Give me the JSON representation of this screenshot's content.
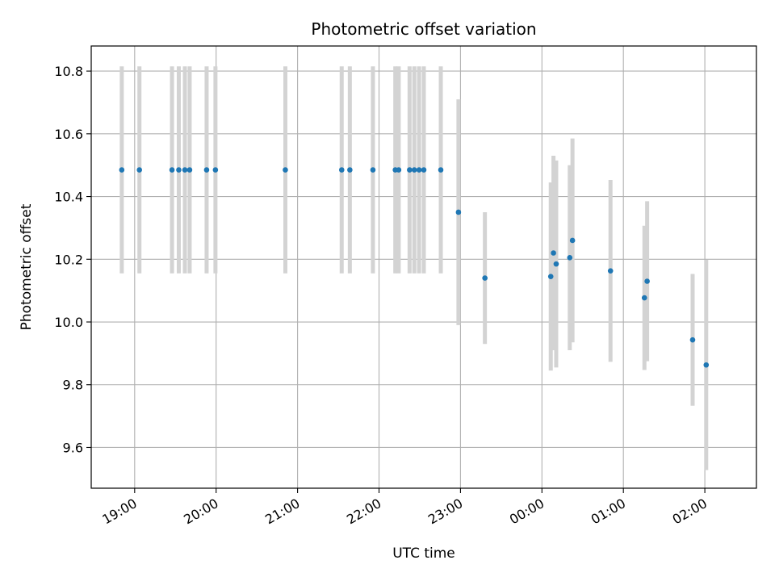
{
  "chart_data": {
    "type": "scatter",
    "title": "Photometric offset variation",
    "xlabel": "UTC time",
    "ylabel": "Photometric offset",
    "grid": true,
    "x_unit": "minutes since 18:00 UTC",
    "xlim": [
      28,
      518
    ],
    "ylim": [
      9.47,
      10.88
    ],
    "yticks": [
      9.6,
      9.8,
      10.0,
      10.2,
      10.4,
      10.6,
      10.8
    ],
    "ytick_labels": [
      "9.6",
      "9.8",
      "10.0",
      "10.2",
      "10.4",
      "10.6",
      "10.8"
    ],
    "xticks": [
      60,
      120,
      180,
      240,
      300,
      360,
      420,
      480
    ],
    "xtick_labels": [
      "19:00",
      "20:00",
      "21:00",
      "22:00",
      "23:00",
      "00:00",
      "01:00",
      "02:00"
    ],
    "point_color": "#1f77b4",
    "errorbar_color": "#d3d3d3",
    "series": [
      {
        "name": "offset",
        "points": [
          {
            "x": 50.5,
            "y": 10.485,
            "yerr": 0.33
          },
          {
            "x": 63.5,
            "y": 10.485,
            "yerr": 0.33
          },
          {
            "x": 87.5,
            "y": 10.485,
            "yerr": 0.33
          },
          {
            "x": 92.5,
            "y": 10.485,
            "yerr": 0.33
          },
          {
            "x": 97.0,
            "y": 10.485,
            "yerr": 0.33
          },
          {
            "x": 100.5,
            "y": 10.485,
            "yerr": 0.33
          },
          {
            "x": 113.0,
            "y": 10.485,
            "yerr": 0.33
          },
          {
            "x": 119.5,
            "y": 10.485,
            "yerr": 0.33
          },
          {
            "x": 171.0,
            "y": 10.485,
            "yerr": 0.33
          },
          {
            "x": 212.5,
            "y": 10.485,
            "yerr": 0.33
          },
          {
            "x": 218.5,
            "y": 10.485,
            "yerr": 0.33
          },
          {
            "x": 235.5,
            "y": 10.485,
            "yerr": 0.33
          },
          {
            "x": 252.0,
            "y": 10.485,
            "yerr": 0.33
          },
          {
            "x": 254.5,
            "y": 10.485,
            "yerr": 0.33
          },
          {
            "x": 262.5,
            "y": 10.485,
            "yerr": 0.33
          },
          {
            "x": 266.0,
            "y": 10.485,
            "yerr": 0.33
          },
          {
            "x": 269.5,
            "y": 10.485,
            "yerr": 0.33
          },
          {
            "x": 273.0,
            "y": 10.485,
            "yerr": 0.33
          },
          {
            "x": 285.5,
            "y": 10.485,
            "yerr": 0.33
          },
          {
            "x": 298.5,
            "y": 10.35,
            "yerr": 0.36
          },
          {
            "x": 318.0,
            "y": 10.14,
            "yerr": 0.21
          },
          {
            "x": 366.5,
            "y": 10.145,
            "yerr": 0.3
          },
          {
            "x": 368.5,
            "y": 10.22,
            "yerr": 0.31
          },
          {
            "x": 370.5,
            "y": 10.185,
            "yerr": 0.33
          },
          {
            "x": 380.5,
            "y": 10.205,
            "yerr": 0.295
          },
          {
            "x": 382.5,
            "y": 10.26,
            "yerr": 0.325
          },
          {
            "x": 410.5,
            "y": 10.163,
            "yerr": 0.29
          },
          {
            "x": 435.5,
            "y": 10.077,
            "yerr": 0.23
          },
          {
            "x": 437.5,
            "y": 10.13,
            "yerr": 0.255
          },
          {
            "x": 471.0,
            "y": 9.943,
            "yerr": 0.21
          },
          {
            "x": 481.0,
            "y": 9.863,
            "yerr": 0.335
          }
        ]
      }
    ]
  }
}
